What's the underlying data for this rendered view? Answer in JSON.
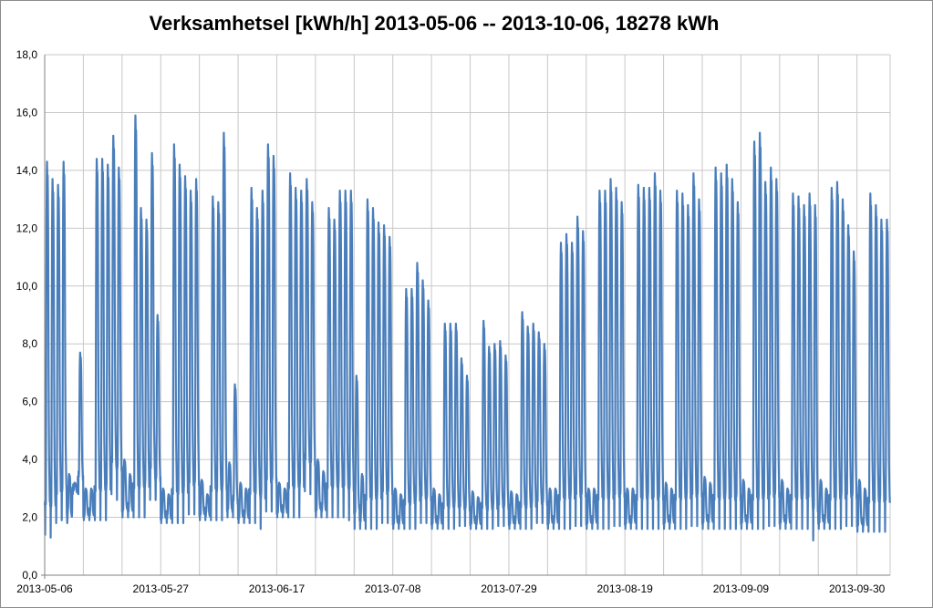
{
  "chart_data": {
    "type": "line",
    "title": "Verksamhetsel [kWh/h]  2013-05-06 -- 2013-10-06, 18278 kWh",
    "xlabel": "",
    "ylabel": "",
    "ylim": [
      0,
      18
    ],
    "grid": true,
    "legend": "none",
    "y_ticks": [
      "0,0",
      "2,0",
      "4,0",
      "6,0",
      "8,0",
      "10,0",
      "12,0",
      "14,0",
      "16,0",
      "18,0"
    ],
    "x_ticks": [
      "2013-05-06",
      "2013-05-27",
      "2013-06-17",
      "2013-07-08",
      "2013-07-29",
      "2013-08-19",
      "2013-09-09",
      "2013-09-30"
    ],
    "x_range": [
      "2013-05-06",
      "2013-10-06"
    ],
    "series_color": "#4a7ebb",
    "grid_color": "#c8c8c8",
    "series": [
      {
        "resolution": "daily",
        "start": "2013-05-06",
        "daily_min": [
          1.4,
          1.3,
          1.8,
          1.9,
          1.8,
          2.8,
          2.8,
          1.9,
          1.9,
          1.9,
          1.9,
          1.9,
          2.8,
          2.6,
          2.0,
          2.0,
          2.0,
          2.0,
          2.0,
          2.6,
          2.6,
          1.8,
          1.8,
          1.8,
          1.8,
          1.8,
          2.1,
          2.1,
          1.9,
          1.9,
          1.9,
          1.9,
          1.9,
          2.0,
          2.0,
          1.8,
          1.8,
          1.8,
          1.8,
          1.6,
          2.2,
          2.2,
          2.0,
          2.0,
          2.0,
          2.0,
          2.0,
          2.9,
          2.8,
          2.0,
          2.0,
          2.0,
          2.0,
          2.0,
          2.0,
          1.9,
          1.6,
          1.6,
          1.6,
          1.6,
          1.6,
          1.8,
          1.8,
          1.6,
          1.6,
          1.6,
          1.6,
          1.6,
          1.8,
          1.8,
          1.6,
          1.6,
          1.6,
          1.6,
          1.6,
          1.7,
          1.7,
          1.6,
          1.6,
          1.6,
          1.6,
          1.6,
          1.7,
          1.7,
          1.6,
          1.6,
          1.6,
          1.6,
          1.6,
          1.8,
          1.8,
          1.6,
          1.6,
          1.6,
          1.6,
          1.6,
          1.7,
          1.7,
          1.6,
          1.6,
          1.6,
          1.6,
          1.6,
          1.7,
          1.7,
          1.6,
          1.6,
          1.6,
          1.6,
          1.6,
          1.6,
          1.6,
          1.6,
          1.6,
          1.6,
          1.6,
          1.6,
          1.7,
          1.7,
          1.6,
          1.6,
          1.6,
          1.6,
          1.6,
          1.6,
          1.6,
          1.6,
          1.6,
          1.6,
          1.6,
          1.6,
          1.7,
          1.7,
          1.6,
          1.6,
          1.6,
          1.6,
          1.6,
          1.6,
          1.2,
          1.6,
          1.6,
          1.6,
          1.6,
          1.6,
          1.7,
          1.7,
          1.5,
          1.5,
          1.5,
          1.5,
          1.5,
          1.5
        ],
        "daily_max": [
          14.3,
          13.7,
          13.5,
          14.3,
          3.5,
          3.2,
          7.7,
          3.0,
          3.0,
          14.4,
          14.4,
          14.2,
          15.2,
          14.1,
          4.0,
          3.5,
          15.9,
          12.7,
          12.3,
          14.6,
          9.0,
          3.0,
          2.8,
          14.9,
          14.2,
          13.8,
          13.3,
          13.7,
          3.3,
          2.8,
          13.1,
          12.9,
          15.3,
          3.9,
          6.6,
          3.2,
          3.0,
          13.4,
          12.7,
          13.3,
          14.9,
          14.5,
          3.2,
          3.0,
          13.9,
          13.4,
          13.3,
          13.7,
          12.9,
          4.0,
          3.6,
          12.7,
          12.3,
          13.3,
          13.3,
          13.3,
          6.9,
          3.5,
          13.0,
          12.7,
          12.2,
          12.1,
          11.7,
          3.0,
          2.8,
          9.9,
          9.9,
          10.8,
          10.2,
          9.5,
          3.0,
          2.8,
          8.7,
          8.7,
          8.7,
          7.5,
          6.9,
          2.9,
          2.7,
          8.8,
          7.9,
          8.0,
          8.1,
          7.6,
          2.9,
          2.8,
          9.1,
          8.6,
          8.7,
          8.4,
          8.0,
          3.0,
          3.0,
          11.5,
          11.8,
          11.5,
          12.4,
          11.9,
          3.0,
          3.0,
          13.3,
          13.3,
          13.7,
          13.4,
          12.9,
          3.0,
          3.0,
          13.5,
          13.4,
          13.4,
          13.9,
          13.3,
          3.2,
          3.0,
          13.3,
          13.2,
          12.8,
          13.9,
          13.0,
          3.4,
          3.2,
          14.1,
          13.9,
          14.2,
          13.7,
          12.9,
          3.3,
          3.0,
          15.0,
          15.3,
          13.6,
          14.1,
          13.7,
          3.3,
          3.0,
          13.2,
          13.1,
          12.8,
          13.2,
          12.8,
          3.3,
          3.0,
          13.4,
          13.6,
          13.0,
          12.1,
          11.2,
          3.3,
          3.0,
          13.2,
          12.8,
          12.3,
          12.3,
          12.0,
          3.7,
          1.9
        ]
      }
    ]
  }
}
